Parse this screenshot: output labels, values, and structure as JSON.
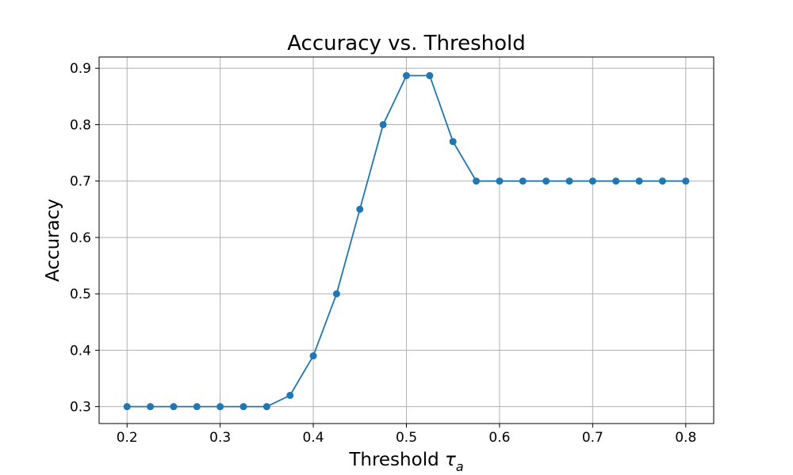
{
  "chart_data": {
    "type": "line",
    "title": "Accuracy vs. Threshold",
    "xlabel_main": "Threshold ",
    "xlabel_symbol": "τ",
    "xlabel_subscript": "a",
    "ylabel": "Accuracy",
    "xlim": [
      0.17,
      0.83
    ],
    "ylim": [
      0.27,
      0.92
    ],
    "xticks": [
      0.2,
      0.3,
      0.4,
      0.5,
      0.6,
      0.7,
      0.8
    ],
    "xtick_labels": [
      "0.2",
      "0.3",
      "0.4",
      "0.5",
      "0.6",
      "0.7",
      "0.8"
    ],
    "yticks": [
      0.3,
      0.4,
      0.5,
      0.6,
      0.7,
      0.8,
      0.9
    ],
    "ytick_labels": [
      "0.3",
      "0.4",
      "0.5",
      "0.6",
      "0.7",
      "0.8",
      "0.9"
    ],
    "grid": true,
    "color": "#1f77b4",
    "series": [
      {
        "x": [
          0.2,
          0.225,
          0.25,
          0.275,
          0.3,
          0.325,
          0.35,
          0.375,
          0.4,
          0.425,
          0.45,
          0.475,
          0.5,
          0.525,
          0.55,
          0.575,
          0.6,
          0.625,
          0.65,
          0.675,
          0.7,
          0.725,
          0.75,
          0.775,
          0.8
        ],
        "y": [
          0.3,
          0.3,
          0.3,
          0.3,
          0.3,
          0.3,
          0.3,
          0.32,
          0.39,
          0.5,
          0.65,
          0.8,
          0.887,
          0.887,
          0.77,
          0.7,
          0.7,
          0.7,
          0.7,
          0.7,
          0.7,
          0.7,
          0.7,
          0.7,
          0.7
        ]
      }
    ]
  }
}
